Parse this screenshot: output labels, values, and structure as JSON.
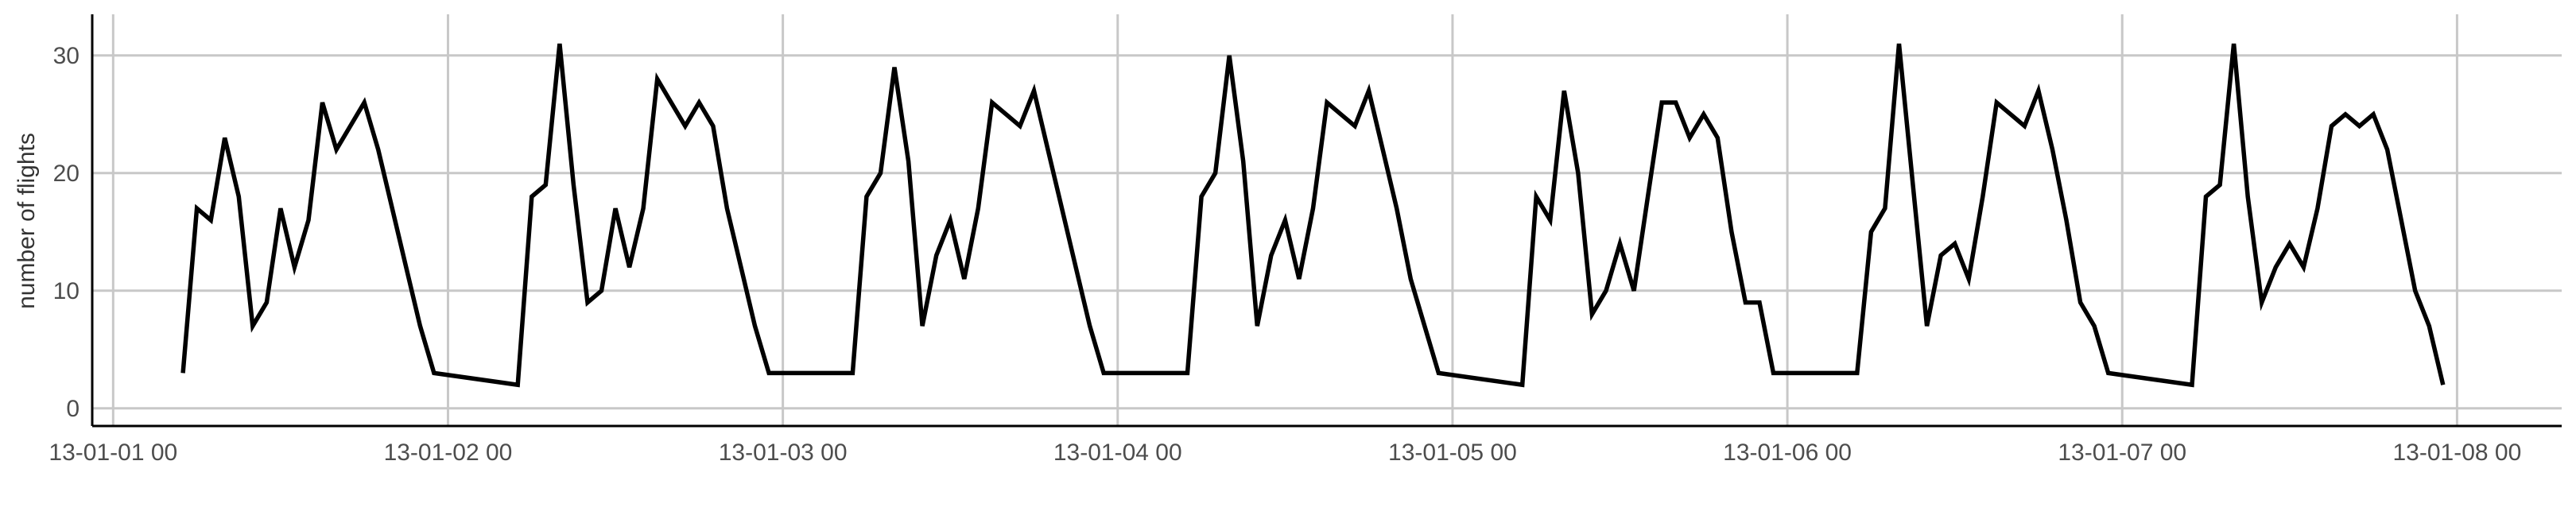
{
  "chart_data": {
    "type": "line",
    "title": "",
    "xlabel": "",
    "ylabel": "number of flights",
    "grid": true,
    "legend": "none",
    "line_color": "#000000",
    "grid_color": "#c8c8c8",
    "x_ticks": [
      "13-01-01 00",
      "13-01-02 00",
      "13-01-03 00",
      "13-01-04 00",
      "13-01-05 00",
      "13-01-06 00",
      "13-01-07 00",
      "13-01-08 00"
    ],
    "x_unit": "hours since 13-01-01 00",
    "xlim": [
      -1.5,
      175.5
    ],
    "y_ticks": [
      0,
      10,
      20,
      30
    ],
    "ylim": [
      -1.5,
      33.5
    ],
    "series": [
      {
        "name": "",
        "x": [
          5,
          6,
          7,
          8,
          9,
          10,
          11,
          12,
          13,
          14,
          15,
          16,
          17,
          18,
          19,
          20,
          21,
          22,
          23,
          29,
          30,
          31,
          32,
          33,
          34,
          35,
          36,
          37,
          38,
          39,
          40,
          41,
          42,
          43,
          44,
          45,
          46,
          47,
          53,
          54,
          55,
          56,
          57,
          58,
          59,
          60,
          61,
          62,
          63,
          64,
          65,
          66,
          67,
          68,
          69,
          70,
          71,
          77,
          78,
          79,
          80,
          81,
          82,
          83,
          84,
          85,
          86,
          87,
          88,
          89,
          90,
          91,
          92,
          93,
          94,
          95,
          101,
          102,
          103,
          104,
          105,
          106,
          107,
          108,
          109,
          110,
          111,
          112,
          113,
          114,
          115,
          116,
          117,
          118,
          119,
          125,
          126,
          127,
          128,
          129,
          130,
          131,
          132,
          133,
          134,
          135,
          136,
          137,
          138,
          139,
          140,
          141,
          142,
          143,
          149,
          150,
          151,
          152,
          153,
          154,
          155,
          156,
          157,
          158,
          159,
          160,
          161,
          162,
          163,
          164,
          165,
          166,
          167
        ],
        "y": [
          3,
          17,
          16,
          23,
          18,
          7,
          9,
          17,
          12,
          16,
          26,
          22,
          24,
          26,
          22,
          17,
          12,
          7,
          3,
          2,
          18,
          19,
          31,
          19,
          9,
          10,
          17,
          12,
          17,
          28,
          26,
          24,
          26,
          24,
          17,
          12,
          7,
          3,
          3,
          18,
          20,
          29,
          21,
          7,
          13,
          16,
          11,
          17,
          26,
          25,
          24,
          27,
          22,
          17,
          12,
          7,
          3,
          3,
          18,
          20,
          30,
          21,
          7,
          13,
          16,
          11,
          17,
          26,
          25,
          24,
          27,
          22,
          17,
          11,
          7,
          3,
          2,
          18,
          16,
          27,
          20,
          8,
          10,
          14,
          10,
          18,
          26,
          26,
          23,
          25,
          23,
          15,
          9,
          9,
          3,
          3,
          15,
          17,
          31,
          19,
          7,
          13,
          14,
          11,
          18,
          26,
          25,
          24,
          27,
          22,
          16,
          9,
          7,
          3,
          2,
          18,
          19,
          31,
          18,
          9,
          12,
          14,
          12,
          17,
          24,
          25,
          24,
          25,
          22,
          16,
          10,
          7,
          2
        ]
      }
    ]
  }
}
